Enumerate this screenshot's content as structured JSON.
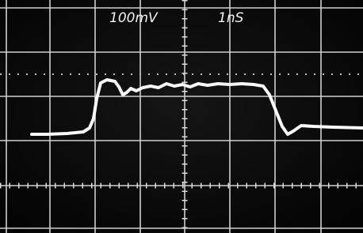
{
  "labels": {
    "volts_per_div": "100mV",
    "time_per_div": "1nS"
  }
}
